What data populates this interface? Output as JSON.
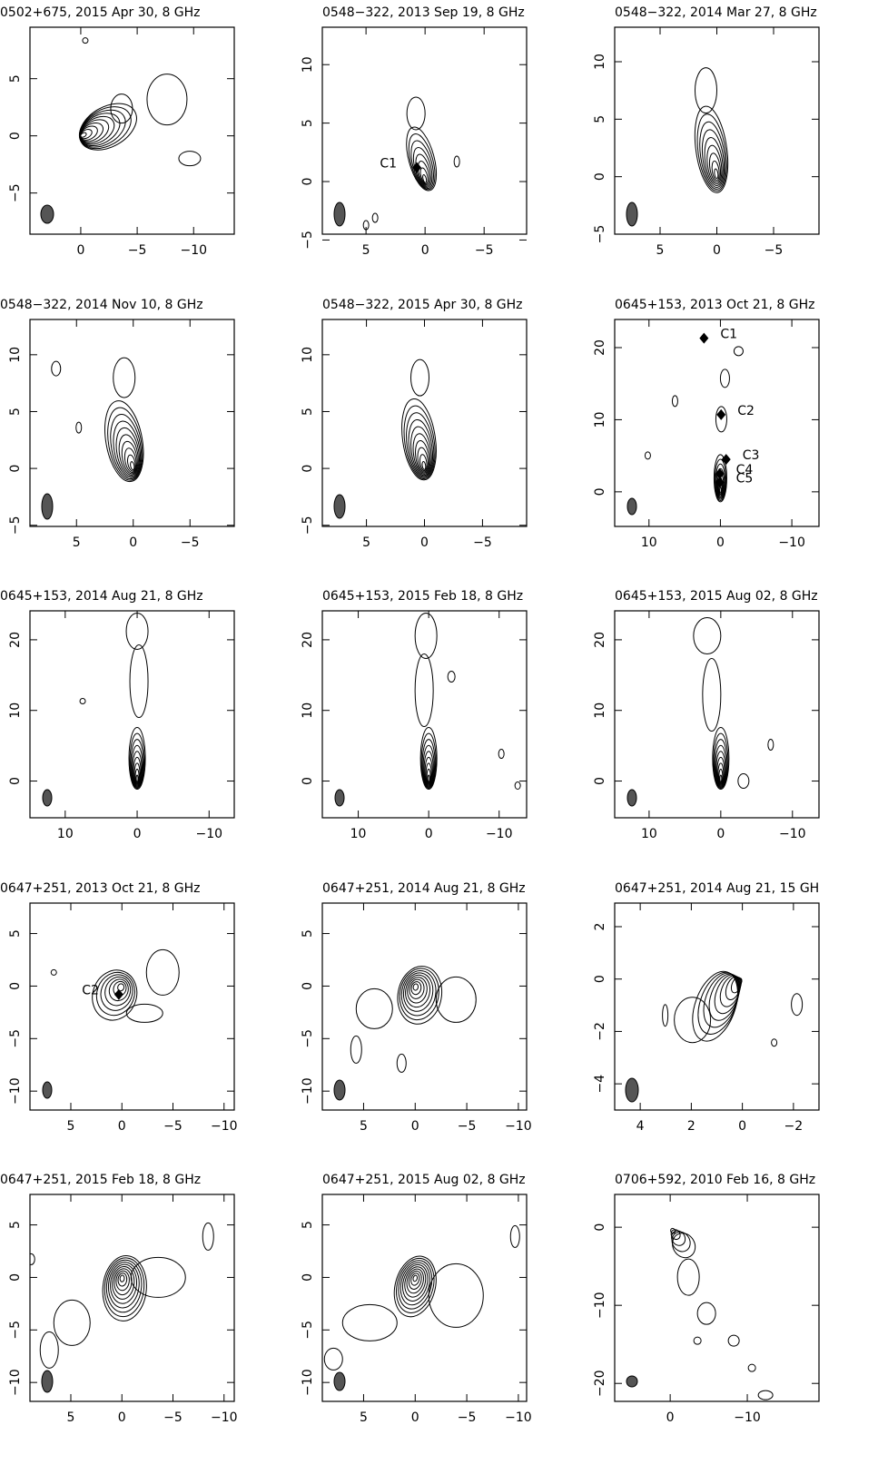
{
  "chart_data": [
    {
      "type": "contour",
      "title": "0502+675, 2015 Apr 30, 8 GHz",
      "xlim": [
        4.5,
        -13.6
      ],
      "ylim": [
        -8.6,
        9.5
      ],
      "xticks": [
        0,
        {
          "value": -5,
          "label": "−5"
        },
        {
          "value": -10,
          "label": "−10"
        }
      ],
      "yticks": [
        {
          "value": -5,
          "label": "−5"
        },
        0,
        5
      ]
    },
    {
      "type": "contour",
      "title": "0548−322, 2013 Sep 19, 8 GHz",
      "xlim": [
        8.7,
        -8.6
      ],
      "ylim": [
        -4.5,
        13.2
      ],
      "xticks": [
        5,
        0,
        {
          "value": -5,
          "label": "−5"
        }
      ],
      "yticks": [
        {
          "value": -5,
          "label": "−5"
        },
        0,
        5,
        10
      ],
      "components": [
        {
          "label": "C1",
          "x": 0.7,
          "y": 1.2
        }
      ]
    },
    {
      "type": "contour",
      "title": "0548−322, 2014 Mar 27, 8 GHz",
      "xlim": [
        9,
        -9
      ],
      "ylim": [
        -5,
        13
      ],
      "xticks": [
        5,
        0,
        {
          "value": -5,
          "label": "−5"
        }
      ],
      "yticks": [
        {
          "value": -5,
          "label": "−5"
        },
        0,
        5,
        10
      ]
    },
    {
      "type": "contour",
      "title": "0548−322, 2014 Nov 10, 8 GHz",
      "xlim": [
        9.1,
        -8.9
      ],
      "ylim": [
        -5.1,
        13.1
      ],
      "xticks": [
        5,
        0,
        {
          "value": -5,
          "label": "−5"
        }
      ],
      "yticks": [
        {
          "value": -5,
          "label": "−5"
        },
        0,
        5,
        10
      ]
    },
    {
      "type": "contour",
      "title": "0548−322, 2015 Apr 30, 8 GHz",
      "xlim": [
        8.8,
        -8.8
      ],
      "ylim": [
        -5.1,
        13.1
      ],
      "xticks": [
        5,
        0,
        {
          "value": -5,
          "label": "−5"
        }
      ],
      "yticks": [
        {
          "value": -5,
          "label": "−5"
        },
        0,
        5,
        10
      ]
    },
    {
      "type": "contour",
      "title": "0645+153, 2013 Oct 21, 8 GHz",
      "xlim": [
        14.8,
        -13.8
      ],
      "ylim": [
        -4.8,
        23.9
      ],
      "xticks": [
        10,
        0,
        {
          "value": -10,
          "label": "−10"
        }
      ],
      "yticks": [
        0,
        10,
        20
      ],
      "components": [
        {
          "label": "C1",
          "x": 2.3,
          "y": 21.3
        },
        {
          "label": "C2",
          "x": -0.1,
          "y": 10.7
        },
        {
          "label": "C3",
          "x": -0.8,
          "y": 4.5
        },
        {
          "label": "C4",
          "x": 0.1,
          "y": 2.5
        },
        {
          "label": "C5",
          "x": 0.1,
          "y": 1.3
        }
      ]
    },
    {
      "type": "contour",
      "title": "0645+153, 2014 Aug 21, 8 GHz",
      "xlim": [
        14.9,
        -13.5
      ],
      "ylim": [
        -5.2,
        24.1
      ],
      "xticks": [
        10,
        0,
        {
          "value": -10,
          "label": "−10"
        }
      ],
      "yticks": [
        0,
        10,
        20
      ]
    },
    {
      "type": "contour",
      "title": "0645+153, 2015 Feb 18, 8 GHz",
      "xlim": [
        15.1,
        -13.9
      ],
      "ylim": [
        -5.2,
        24.1
      ],
      "xticks": [
        10,
        0,
        {
          "value": -10,
          "label": "−10"
        }
      ],
      "yticks": [
        0,
        10,
        20
      ]
    },
    {
      "type": "contour",
      "title": "0645+153, 2015 Aug 02, 8 GHz",
      "xlim": [
        14.8,
        -13.7
      ],
      "ylim": [
        -5.2,
        24.1
      ],
      "xticks": [
        10,
        0,
        {
          "value": -10,
          "label": "−10"
        }
      ],
      "yticks": [
        0,
        10,
        20
      ]
    },
    {
      "type": "contour",
      "title": "0647+251, 2013 Oct 21, 8 GHz",
      "xlim": [
        9,
        -11
      ],
      "ylim": [
        -11.8,
        7.9
      ],
      "xticks": [
        5,
        0,
        {
          "value": -5,
          "label": "−5"
        },
        {
          "value": -10,
          "label": "−10"
        }
      ],
      "yticks": [
        {
          "value": -10,
          "label": "−10"
        },
        {
          "value": -5,
          "label": "−5"
        },
        0,
        5
      ],
      "components": [
        {
          "label": "C2",
          "x": 0.3,
          "y": -0.8
        }
      ]
    },
    {
      "type": "contour",
      "title": "0647+251, 2014 Aug 21, 8 GHz",
      "xlim": [
        9,
        -10.8
      ],
      "ylim": [
        -11.8,
        7.9
      ],
      "xticks": [
        5,
        0,
        {
          "value": -5,
          "label": "−5"
        },
        {
          "value": -10,
          "label": "−10"
        }
      ],
      "yticks": [
        {
          "value": -10,
          "label": "−10"
        },
        {
          "value": -5,
          "label": "−5"
        },
        0,
        5
      ]
    },
    {
      "type": "contour",
      "title": "0647+251, 2014 Aug 21, 15 GH",
      "xlim": [
        5,
        -3
      ],
      "ylim": [
        -5,
        2.9
      ],
      "xticks": [
        4,
        2,
        0,
        {
          "value": -2,
          "label": "−2"
        }
      ],
      "yticks": [
        {
          "value": -4,
          "label": "−4"
        },
        {
          "value": -2,
          "label": "−2"
        },
        0,
        2
      ]
    },
    {
      "type": "contour",
      "title": "0647+251, 2015 Feb 18, 8 GHz",
      "xlim": [
        9,
        -11
      ],
      "ylim": [
        -11.8,
        7.9
      ],
      "xticks": [
        5,
        0,
        {
          "value": -5,
          "label": "−5"
        },
        {
          "value": -10,
          "label": "−10"
        }
      ],
      "yticks": [
        {
          "value": -10,
          "label": "−10"
        },
        {
          "value": -5,
          "label": "−5"
        },
        0,
        5
      ]
    },
    {
      "type": "contour",
      "title": "0647+251, 2015 Aug 02, 8 GHz",
      "xlim": [
        9,
        -10.8
      ],
      "ylim": [
        -11.8,
        7.9
      ],
      "xticks": [
        5,
        0,
        {
          "value": -5,
          "label": "−5"
        },
        {
          "value": -10,
          "label": "−10"
        }
      ],
      "yticks": [
        {
          "value": -10,
          "label": "−10"
        },
        {
          "value": -5,
          "label": "−5"
        },
        0,
        5
      ]
    },
    {
      "type": "contour",
      "title": "0706+592, 2010 Feb 16, 8 GHz",
      "xlim": [
        7.2,
        -19.3
      ],
      "ylim": [
        -22.3,
        4.2
      ],
      "xticks": [
        0,
        {
          "value": -10,
          "label": "−10"
        }
      ],
      "yticks": [
        {
          "value": -20,
          "label": "−20"
        },
        {
          "value": -10,
          "label": "−10"
        },
        0
      ]
    }
  ]
}
